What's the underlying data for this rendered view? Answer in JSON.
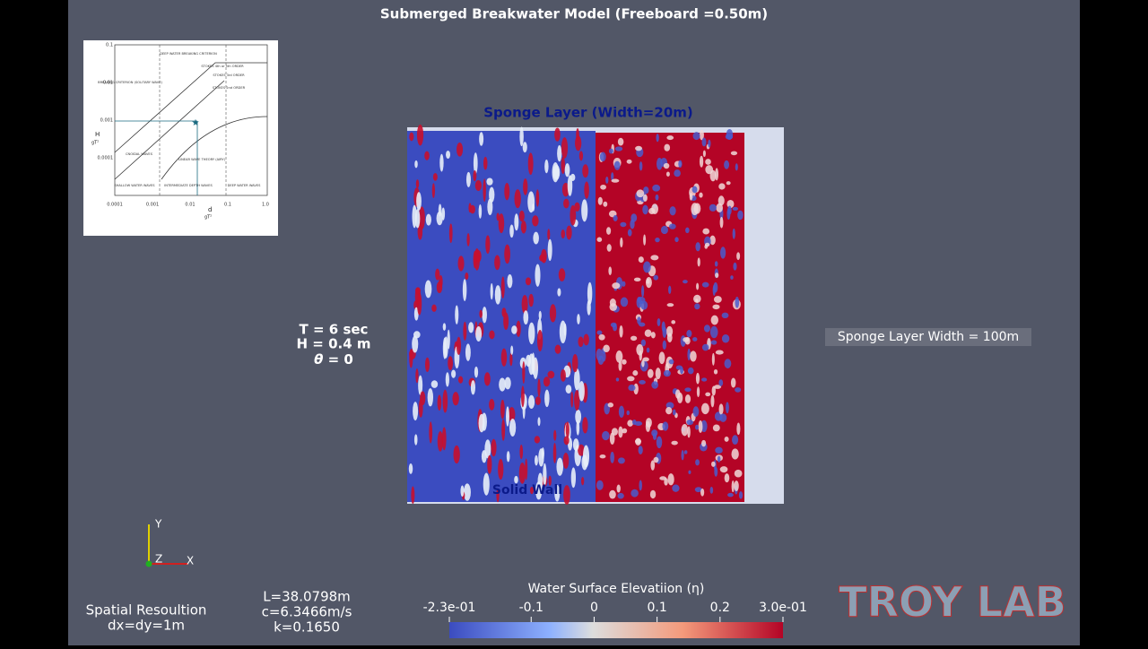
{
  "title": "Submerged Breakwater Model (Freeboard =0.50m)",
  "inset": {
    "y_label": "H",
    "y_label_den": "gT²",
    "x_label": "d",
    "x_label_den": "gT²",
    "yticks": [
      "0.1",
      "0.01",
      "0.001",
      "0.0001"
    ],
    "xticks": [
      "0.0001",
      "0.001",
      "0.01",
      "0.1",
      "1.0"
    ],
    "notes": [
      "DEEP WATER BREAKING CRITERION",
      "STOKES 4th or 5th ORDER",
      "STOKES 3rd ORDER",
      "STOKES 2nd ORDER",
      "BREAKING CRITERION (SOLITARY WAVE)",
      "CNOIDAL WAVES",
      "LINEAR WAVE THEORY (AIRY)",
      "SHALLOW WATER WAVES",
      "INTERMEDIATE DEPTH WAVES",
      "DEEP WATER WAVES"
    ]
  },
  "field": {
    "top_label": "Sponge Layer (Width=20m)",
    "bottom_label": "Solid Wall"
  },
  "params": [
    "T = 6 sec",
    "H = 0.4 m"
  ],
  "theta": {
    "symbol": "θ",
    "text": " = 0"
  },
  "right_label": "Sponge Layer Width = 100m",
  "axes": {
    "y": "Y",
    "z": "Z",
    "x": "X"
  },
  "resolution": [
    "Spatial Resoultion",
    "dx=dy=1m"
  ],
  "wave": [
    "L=38.0798m",
    "c=6.3466m/s",
    "k=0.1650"
  ],
  "colorbar": {
    "title": "Water Surface Elevatiion (η)",
    "range": [
      -0.23,
      0.3
    ],
    "ticks": [
      {
        "value": -0.23,
        "label": "-2.3e-01"
      },
      -0.1,
      0,
      0.1,
      0.2,
      {
        "value": 0.3,
        "label": "3.0e-01"
      }
    ]
  },
  "logo": "TROY LAB"
}
